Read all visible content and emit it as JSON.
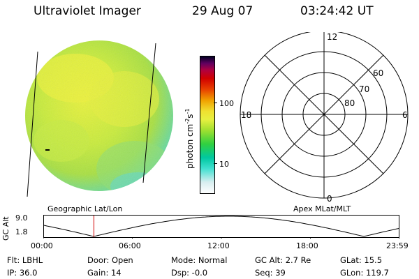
{
  "header": {
    "instrument": "Ultraviolet Imager",
    "date": "29 Aug 07",
    "time": "03:24:42 UT"
  },
  "colorbar": {
    "label": "photon cm",
    "exp1": "-2",
    "label_mid": "s",
    "exp2": "-1",
    "ticks": [
      {
        "value": "100",
        "level": 0.58
      },
      {
        "value": "10",
        "level": 0.23
      }
    ],
    "colors": [
      "#ffffff",
      "#d0e8f0",
      "#40e0d0",
      "#00c8a0",
      "#30d040",
      "#a0e030",
      "#e8f040",
      "#f0e030",
      "#f0a000",
      "#e84000",
      "#d00000",
      "#b00030",
      "#700060",
      "#1a0040",
      "#000000"
    ]
  },
  "polar_grid": {
    "labels_mlt": [
      "12",
      "18",
      "6",
      "0"
    ],
    "labels_lat": [
      "60",
      "70",
      "80"
    ]
  },
  "timeline": {
    "left_title": "Geographic Lat/Lon",
    "right_title": "Apex MLat/MLT",
    "axis_label": "GC Alt",
    "y_ticks": [
      "9.0",
      "1.8"
    ],
    "x_ticks": [
      "00:00",
      "06:00",
      "12:00",
      "18:00",
      "23:59"
    ],
    "orbit_color": "#000000",
    "marker_color": "#d00000",
    "marker_time_hours": 3.41
  },
  "status": {
    "row1": [
      "Flt: LBHL",
      "Door: Open",
      "Mode: Normal",
      "GC Alt: 2.7 Re",
      "GLat:  15.5"
    ],
    "row2": [
      "IP: 36.0",
      "Gain: 14",
      "Dsp:   -0.0",
      "Seq: 39",
      "GLon: 119.7"
    ]
  }
}
